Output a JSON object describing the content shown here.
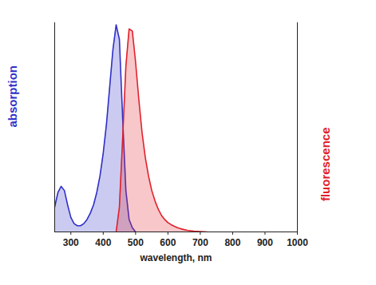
{
  "chart_data": {
    "type": "area",
    "x_label": "wavelength, nm",
    "x": [
      250,
      260,
      270,
      280,
      290,
      300,
      310,
      320,
      330,
      340,
      350,
      360,
      370,
      380,
      390,
      400,
      410,
      420,
      430,
      440,
      450,
      460,
      470,
      480,
      490,
      500,
      510,
      520,
      530,
      540,
      550,
      560,
      570,
      580,
      590,
      600,
      610,
      620,
      630,
      640,
      650,
      660,
      670,
      680,
      690,
      700,
      710,
      720
    ],
    "series": [
      {
        "name": "absorption",
        "color": "#3030c8",
        "values": [
          0.12,
          0.19,
          0.22,
          0.2,
          0.13,
          0.07,
          0.04,
          0.03,
          0.03,
          0.04,
          0.06,
          0.09,
          0.13,
          0.19,
          0.27,
          0.38,
          0.52,
          0.7,
          0.88,
          1.0,
          0.93,
          0.55,
          0.2,
          0.06,
          0.02,
          0.0,
          null,
          null,
          null,
          null,
          null,
          null,
          null,
          null,
          null,
          null,
          null,
          null,
          null,
          null,
          null,
          null,
          null,
          null,
          null,
          null,
          null,
          null
        ]
      },
      {
        "name": "fluorescence",
        "color": "#e0202a",
        "values": [
          null,
          null,
          null,
          null,
          null,
          null,
          null,
          null,
          null,
          null,
          null,
          null,
          null,
          null,
          null,
          null,
          null,
          null,
          null,
          0.0,
          0.12,
          0.45,
          0.8,
          0.98,
          0.97,
          0.82,
          0.64,
          0.48,
          0.36,
          0.27,
          0.2,
          0.15,
          0.11,
          0.08,
          0.06,
          0.045,
          0.035,
          0.027,
          0.02,
          0.015,
          0.011,
          0.008,
          0.006,
          0.004,
          0.003,
          0.002,
          0.001,
          0.0
        ]
      }
    ],
    "xlim": [
      250,
      1000
    ],
    "xticks": [
      300,
      400,
      500,
      600,
      700,
      800,
      900,
      1000
    ],
    "ylim": [
      0,
      1.01
    ],
    "yticks": [],
    "tick_labels": "x",
    "grid": false
  }
}
